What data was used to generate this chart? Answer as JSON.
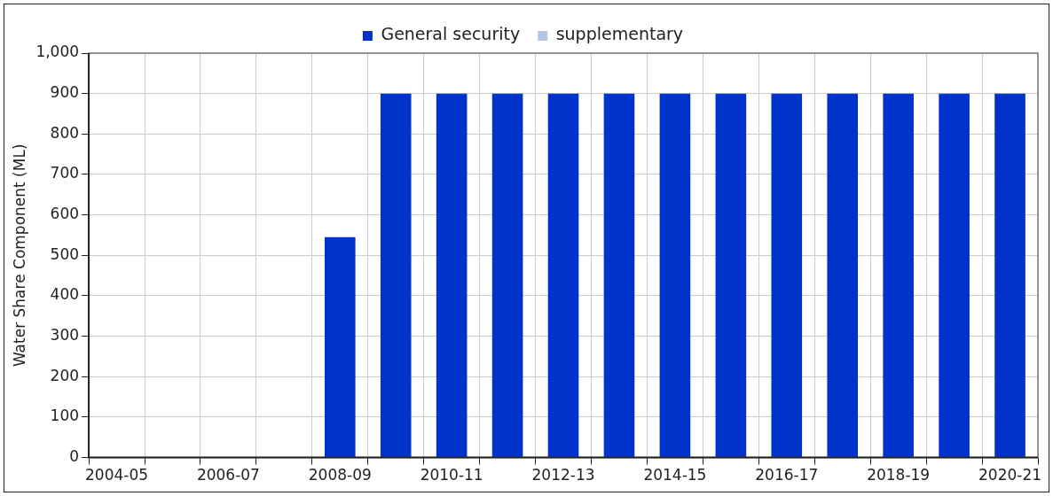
{
  "chart_data": {
    "type": "bar",
    "ylabel": "Water Share Component (ML)",
    "categories": [
      "2004-05",
      null,
      "2006-07",
      null,
      "2008-09",
      null,
      "2010-11",
      null,
      "2012-13",
      null,
      "2014-15",
      null,
      "2016-17",
      null,
      "2018-19",
      null,
      "2020-21"
    ],
    "series": [
      {
        "name": "General security",
        "color": "#0033cc",
        "values": [
          null,
          null,
          null,
          null,
          545,
          900,
          900,
          900,
          900,
          900,
          900,
          900,
          900,
          900,
          900,
          900,
          900
        ]
      },
      {
        "name": "supplementary",
        "color": "#b4c7e7",
        "values": [
          null,
          null,
          null,
          null,
          null,
          null,
          null,
          null,
          null,
          null,
          null,
          null,
          null,
          null,
          null,
          null,
          null
        ]
      }
    ],
    "stacked": true,
    "ylim": [
      0,
      1000
    ],
    "yticks": [
      0,
      100,
      200,
      300,
      400,
      500,
      600,
      700,
      800,
      900,
      {
        "value": 1000,
        "label": "1,000"
      }
    ],
    "grid": true,
    "legend": "top"
  }
}
